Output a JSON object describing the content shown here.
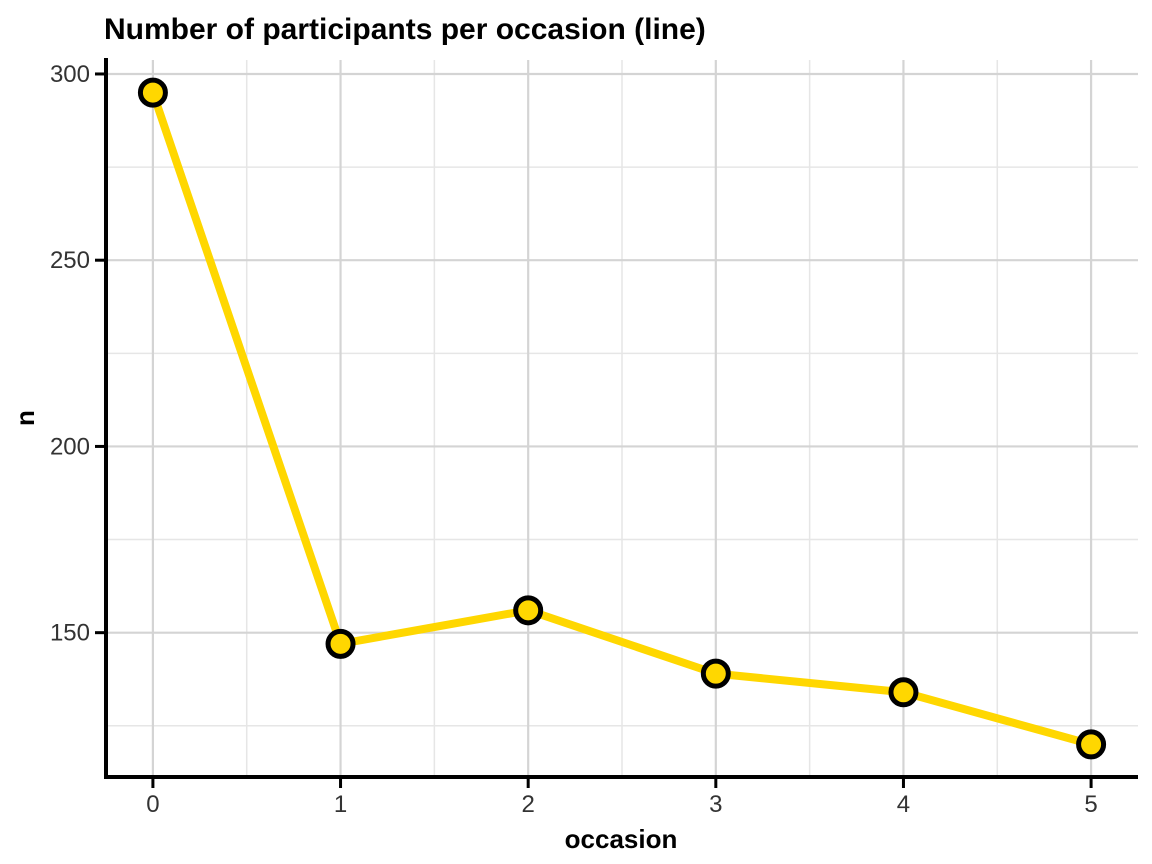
{
  "chart_data": {
    "type": "line",
    "title": "Number of participants per occasion (line)",
    "xlabel": "occasion",
    "ylabel": "n",
    "x": [
      0,
      1,
      2,
      3,
      4,
      5
    ],
    "series": [
      {
        "name": "n",
        "values": [
          295,
          147,
          156,
          139,
          134,
          120
        ]
      }
    ],
    "x_ticks": [
      0,
      1,
      2,
      3,
      4,
      5
    ],
    "y_ticks": [
      150,
      200,
      250,
      300
    ],
    "x_minor_gridlines": [
      0.5,
      1.5,
      2.5,
      3.5,
      4.5
    ],
    "y_minor_gridlines": [
      125,
      175,
      225,
      275
    ],
    "xlim": [
      -0.25,
      5.25
    ],
    "ylim": [
      111.25,
      303.75
    ],
    "grid": "major+minor",
    "legend": "none",
    "colors": {
      "line": "#FFD700",
      "point_fill": "#FFD700",
      "point_stroke": "#000000",
      "axis_line": "#000000",
      "grid_major": "#D4D4D4",
      "grid_minor": "#E6E6E6",
      "tick_label": "#333333",
      "title": "#000000",
      "background": "#FFFFFF"
    }
  }
}
